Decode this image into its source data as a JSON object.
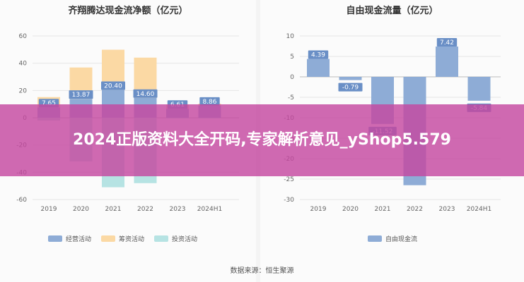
{
  "chart_data": [
    {
      "type": "bar",
      "title": "齐翔腾达现金流净额（亿元）",
      "categories": [
        "2019",
        "2020",
        "2021",
        "2022",
        "2023",
        "2024H1"
      ],
      "ylim": [
        -60,
        60
      ],
      "yticks": [
        60,
        40,
        20,
        0,
        -20,
        -40,
        -60
      ],
      "grid": true,
      "legend_position": "bottom",
      "series": [
        {
          "name": "经营活动",
          "color": "#8eacd6",
          "values": [
            7.65,
            13.87,
            20.4,
            14.6,
            6.61,
            8.86
          ]
        },
        {
          "name": "筹资活动",
          "color": "#fbd9a4",
          "values": [
            7.5,
            23,
            29.5,
            29.5,
            3,
            1.5
          ]
        },
        {
          "name": "投资活动",
          "color": "#b6e3e3",
          "values": [
            -2,
            -32,
            -51,
            -48,
            -0.5,
            -0.5
          ]
        }
      ],
      "data_labels": [
        "7.65",
        "13.87",
        "20.40",
        "14.60",
        "6.61",
        "8.86"
      ]
    },
    {
      "type": "bar",
      "title": "自由现金流量（亿元）",
      "categories": [
        "2019",
        "2020",
        "2021",
        "2022",
        "2023",
        "2024H1"
      ],
      "ylim": [
        -30,
        10
      ],
      "yticks": [
        10,
        5,
        0,
        -5,
        -10,
        -15,
        -20,
        -25,
        -30
      ],
      "grid": true,
      "legend_position": "bottom",
      "series": [
        {
          "name": "自由现金流",
          "color": "#8eacd6",
          "values": [
            4.39,
            -0.79,
            -11.52,
            -26.5,
            7.42,
            -5.84
          ]
        }
      ],
      "data_labels": [
        "4.39",
        "-0.79",
        "-11.52",
        "",
        "7.42",
        "-5.84"
      ]
    }
  ],
  "source": "数据来源：恒生聚源",
  "banner": "2024正版资料大全开码,专家解析意见_yShop5.579",
  "colors": {
    "banner": "#c448a0"
  }
}
